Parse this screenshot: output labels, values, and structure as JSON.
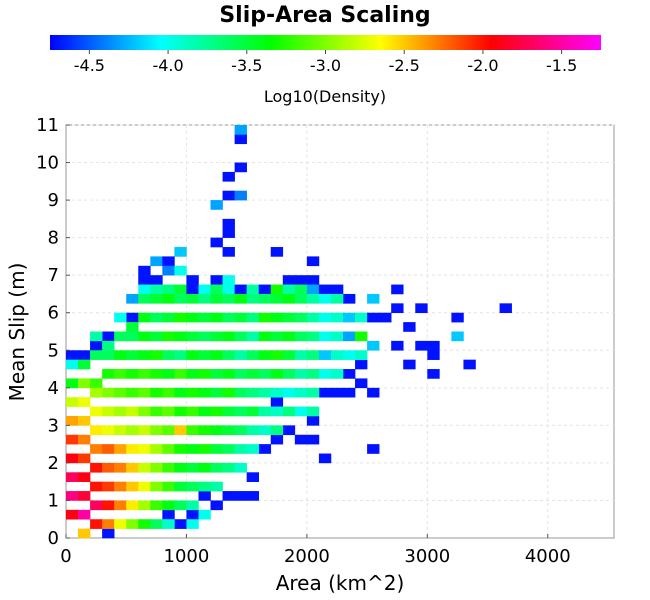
{
  "chart_data": {
    "type": "heatmap",
    "title": "Slip-Area Scaling",
    "xlabel": "Area (km^2)",
    "ylabel": "Mean Slip (m)",
    "colorbar_label": "Log10(Density)",
    "xlim": [
      0,
      4550
    ],
    "ylim": [
      0,
      11
    ],
    "x_ticks": [
      0,
      1000,
      2000,
      3000,
      4000
    ],
    "y_ticks": [
      0,
      1,
      2,
      3,
      4,
      5,
      6,
      7,
      8,
      9,
      10,
      11
    ],
    "colorbar_range": [
      -4.75,
      -1.25
    ],
    "colorbar_ticks": [
      -4.5,
      -4.0,
      -3.5,
      -3.0,
      -2.5,
      -2.0,
      -1.5
    ],
    "colormap": [
      "#0000ff",
      "#00ffff",
      "#00ff00",
      "#ffff00",
      "#ff0000",
      "#ff00ff"
    ],
    "grid": true,
    "bin_size": {
      "area": 100,
      "slip": 0.25
    },
    "cells_note": "cells: [area_bin_start_km2, slip_bin_start_m, log10_density]",
    "cells": [
      [
        1400,
        10.5,
        -4.7
      ],
      [
        1400,
        10.75,
        -4.3
      ],
      [
        1400,
        9.75,
        -4.7
      ],
      [
        1300,
        9.5,
        -4.7
      ],
      [
        1300,
        9.0,
        -4.7
      ],
      [
        1400,
        9.0,
        -4.4
      ],
      [
        1200,
        8.75,
        -4.3
      ],
      [
        1300,
        8.25,
        -4.7
      ],
      [
        1300,
        8.0,
        -4.7
      ],
      [
        1200,
        7.75,
        -4.7
      ],
      [
        900,
        7.5,
        -4.2
      ],
      [
        1300,
        7.5,
        -4.7
      ],
      [
        1700,
        7.5,
        -4.7
      ],
      [
        2000,
        7.25,
        -4.7
      ],
      [
        600,
        7.0,
        -4.7
      ],
      [
        700,
        7.25,
        -4.3
      ],
      [
        800,
        7.25,
        -4.7
      ],
      [
        600,
        6.75,
        -4.7
      ],
      [
        700,
        6.75,
        -4.7
      ],
      [
        800,
        7.0,
        -4.4
      ],
      [
        900,
        7.0,
        -4.0
      ],
      [
        1000,
        6.75,
        -4.7
      ],
      [
        1200,
        6.75,
        -4.7
      ],
      [
        1300,
        6.75,
        -4.0
      ],
      [
        1800,
        6.75,
        -4.7
      ],
      [
        1900,
        6.75,
        -4.7
      ],
      [
        2000,
        6.75,
        -4.7
      ],
      [
        500,
        6.25,
        -4.3
      ],
      [
        600,
        6.5,
        -4.0
      ],
      [
        700,
        6.5,
        -3.8
      ],
      [
        800,
        6.5,
        -3.7
      ],
      [
        900,
        6.5,
        -3.5
      ],
      [
        1000,
        6.5,
        -4.7
      ],
      [
        1100,
        6.5,
        -4.0
      ],
      [
        1200,
        6.5,
        -3.6
      ],
      [
        1300,
        6.5,
        -4.0
      ],
      [
        1400,
        6.5,
        -4.7
      ],
      [
        1500,
        6.5,
        -3.8
      ],
      [
        1600,
        6.5,
        -4.7
      ],
      [
        1700,
        6.5,
        -3.3
      ],
      [
        1800,
        6.5,
        -3.8
      ],
      [
        1900,
        6.5,
        -3.6
      ],
      [
        2000,
        6.5,
        -4.3
      ],
      [
        2100,
        6.5,
        -4.7
      ],
      [
        2200,
        6.5,
        -4.7
      ],
      [
        2700,
        6.5,
        -4.7
      ],
      [
        2300,
        6.25,
        -4.7
      ],
      [
        2500,
        6.25,
        -4.2
      ],
      [
        2900,
        6.0,
        -4.7
      ],
      [
        3200,
        5.75,
        -4.7
      ],
      [
        3600,
        6.0,
        -4.7
      ],
      [
        2600,
        5.75,
        -4.7
      ],
      [
        2700,
        6.0,
        -4.7
      ],
      [
        2800,
        5.5,
        -4.7
      ],
      [
        3200,
        5.25,
        -4.2
      ],
      [
        500,
        5.75,
        -4.7
      ],
      [
        300,
        5.25,
        -4.7
      ],
      [
        200,
        5.0,
        -4.7
      ],
      [
        0,
        4.75,
        -4.7
      ],
      [
        100,
        4.75,
        -4.7
      ],
      [
        2700,
        5.0,
        -4.7
      ],
      [
        2900,
        5.0,
        -4.7
      ],
      [
        3000,
        5.0,
        -4.7
      ],
      [
        3000,
        4.75,
        -4.7
      ],
      [
        3300,
        4.5,
        -4.7
      ],
      [
        2800,
        4.5,
        -4.7
      ],
      [
        3000,
        4.25,
        -4.7
      ],
      [
        2400,
        4.5,
        -4.7
      ],
      [
        2300,
        4.25,
        -4.7
      ],
      [
        2400,
        4.0,
        -4.7
      ],
      [
        2200,
        3.75,
        -4.7
      ],
      [
        2300,
        3.75,
        -4.7
      ],
      [
        2500,
        3.75,
        -4.7
      ],
      [
        2100,
        3.75,
        -4.7
      ],
      [
        1700,
        3.5,
        -4.7
      ],
      [
        2000,
        3.0,
        -4.7
      ],
      [
        1800,
        2.75,
        -4.7
      ],
      [
        1900,
        2.5,
        -4.7
      ],
      [
        2000,
        2.5,
        -4.7
      ],
      [
        1700,
        2.5,
        -4.7
      ],
      [
        1600,
        2.25,
        -4.7
      ],
      [
        2100,
        2.0,
        -4.7
      ],
      [
        2500,
        2.25,
        -4.7
      ],
      [
        1500,
        1.5,
        -4.7
      ],
      [
        1400,
        1.0,
        -4.7
      ],
      [
        1500,
        1.0,
        -4.7
      ],
      [
        1100,
        1.0,
        -4.7
      ],
      [
        1200,
        0.75,
        -4.7
      ],
      [
        1300,
        1.0,
        -4.7
      ],
      [
        900,
        0.25,
        -4.7
      ],
      [
        300,
        0.0,
        -4.7
      ],
      [
        1000,
        0.5,
        -4.7
      ],
      [
        800,
        0.5,
        -4.7
      ],
      [
        0,
        4.5,
        -4.0
      ],
      [
        100,
        4.5,
        -3.5
      ],
      [
        200,
        4.75,
        -3.6
      ],
      [
        300,
        4.75,
        -3.6
      ],
      [
        400,
        4.75,
        -3.4
      ],
      [
        500,
        4.75,
        -3.5
      ],
      [
        600,
        4.75,
        -3.4
      ],
      [
        700,
        4.75,
        -3.3
      ],
      [
        800,
        4.75,
        -3.6
      ],
      [
        900,
        4.75,
        -3.7
      ],
      [
        1000,
        4.75,
        -3.4
      ],
      [
        1100,
        4.75,
        -3.5
      ],
      [
        1200,
        4.75,
        -3.4
      ],
      [
        1300,
        4.75,
        -3.6
      ],
      [
        1400,
        4.75,
        -3.8
      ],
      [
        1500,
        4.75,
        -3.6
      ],
      [
        1600,
        4.75,
        -3.4
      ],
      [
        1700,
        4.75,
        -3.3
      ],
      [
        1800,
        4.75,
        -3.5
      ],
      [
        1900,
        4.75,
        -3.8
      ],
      [
        2000,
        4.75,
        -3.7
      ],
      [
        2100,
        4.75,
        -4.2
      ],
      [
        2200,
        4.75,
        -3.9
      ],
      [
        2300,
        4.75,
        -4.0
      ],
      [
        2400,
        4.75,
        -3.9
      ],
      [
        200,
        5.25,
        -3.8
      ],
      [
        300,
        5.0,
        -3.7
      ],
      [
        400,
        5.25,
        -3.6
      ],
      [
        500,
        5.25,
        -3.6
      ],
      [
        600,
        5.25,
        -3.4
      ],
      [
        700,
        5.25,
        -3.5
      ],
      [
        800,
        5.25,
        -3.3
      ],
      [
        900,
        5.25,
        -3.4
      ],
      [
        1000,
        5.25,
        -3.5
      ],
      [
        1100,
        5.25,
        -3.6
      ],
      [
        1200,
        5.25,
        -3.5
      ],
      [
        1300,
        5.25,
        -3.4
      ],
      [
        1400,
        5.25,
        -3.6
      ],
      [
        1500,
        5.25,
        -3.8
      ],
      [
        1600,
        5.25,
        -3.4
      ],
      [
        1700,
        5.25,
        -3.5
      ],
      [
        1800,
        5.25,
        -3.4
      ],
      [
        1900,
        5.25,
        -3.6
      ],
      [
        2000,
        5.25,
        -3.7
      ],
      [
        2100,
        5.25,
        -4.0
      ],
      [
        2200,
        5.25,
        -3.9
      ],
      [
        2300,
        5.25,
        -4.3
      ],
      [
        2400,
        5.25,
        -3.3
      ],
      [
        2500,
        5.0,
        -4.2
      ],
      [
        400,
        5.75,
        -4.0
      ],
      [
        500,
        5.5,
        -3.5
      ],
      [
        600,
        5.75,
        -3.4
      ],
      [
        700,
        5.75,
        -3.6
      ],
      [
        800,
        5.75,
        -3.5
      ],
      [
        900,
        5.75,
        -3.3
      ],
      [
        1000,
        5.75,
        -3.4
      ],
      [
        1100,
        5.75,
        -3.5
      ],
      [
        1200,
        5.75,
        -3.4
      ],
      [
        1300,
        5.75,
        -3.6
      ],
      [
        1400,
        5.75,
        -3.5
      ],
      [
        1500,
        5.75,
        -3.7
      ],
      [
        1600,
        5.75,
        -3.3
      ],
      [
        1700,
        5.75,
        -3.4
      ],
      [
        1800,
        5.75,
        -3.5
      ],
      [
        1900,
        5.75,
        -3.6
      ],
      [
        2000,
        5.75,
        -3.8
      ],
      [
        2100,
        5.75,
        -4.0
      ],
      [
        2200,
        5.75,
        -3.9
      ],
      [
        2300,
        5.75,
        -4.2
      ],
      [
        2400,
        5.75,
        -3.9
      ],
      [
        2500,
        5.75,
        -4.7
      ],
      [
        600,
        6.25,
        -3.6
      ],
      [
        700,
        6.25,
        -3.5
      ],
      [
        800,
        6.25,
        -3.4
      ],
      [
        900,
        6.25,
        -3.6
      ],
      [
        1000,
        6.25,
        -3.5
      ],
      [
        1100,
        6.25,
        -3.7
      ],
      [
        1200,
        6.25,
        -3.5
      ],
      [
        1300,
        6.25,
        -3.6
      ],
      [
        1400,
        6.25,
        -3.4
      ],
      [
        1500,
        6.25,
        -3.7
      ],
      [
        1600,
        6.25,
        -3.6
      ],
      [
        1700,
        6.25,
        -3.5
      ],
      [
        1800,
        6.25,
        -3.4
      ],
      [
        1900,
        6.25,
        -3.6
      ],
      [
        2000,
        6.25,
        -3.8
      ],
      [
        2100,
        6.25,
        -4.0
      ],
      [
        2200,
        6.25,
        -3.8
      ],
      [
        0,
        4.0,
        -3.4
      ],
      [
        100,
        4.0,
        -3.0
      ],
      [
        200,
        4.0,
        -3.2
      ],
      [
        300,
        4.25,
        -3.3
      ],
      [
        400,
        4.25,
        -3.2
      ],
      [
        500,
        4.25,
        -3.3
      ],
      [
        600,
        4.25,
        -3.2
      ],
      [
        700,
        4.25,
        -3.3
      ],
      [
        800,
        4.25,
        -3.4
      ],
      [
        900,
        4.25,
        -3.2
      ],
      [
        1000,
        4.25,
        -3.4
      ],
      [
        1100,
        4.25,
        -3.3
      ],
      [
        1200,
        4.25,
        -3.5
      ],
      [
        1300,
        4.25,
        -3.4
      ],
      [
        1400,
        4.25,
        -3.6
      ],
      [
        1500,
        4.25,
        -3.5
      ],
      [
        1600,
        4.25,
        -3.6
      ],
      [
        1700,
        4.25,
        -3.4
      ],
      [
        1800,
        4.25,
        -3.6
      ],
      [
        1900,
        4.25,
        -3.8
      ],
      [
        2000,
        4.25,
        -3.7
      ],
      [
        2100,
        4.25,
        -4.0
      ],
      [
        2200,
        4.25,
        -3.9
      ],
      [
        0,
        3.5,
        -2.8
      ],
      [
        100,
        3.5,
        -2.7
      ],
      [
        200,
        3.75,
        -2.9
      ],
      [
        300,
        3.75,
        -3.0
      ],
      [
        400,
        3.75,
        -3.1
      ],
      [
        500,
        3.75,
        -3.2
      ],
      [
        600,
        3.75,
        -3.1
      ],
      [
        700,
        3.75,
        -3.3
      ],
      [
        800,
        3.75,
        -3.2
      ],
      [
        900,
        3.75,
        -3.4
      ],
      [
        1000,
        3.75,
        -3.3
      ],
      [
        1100,
        3.75,
        -3.4
      ],
      [
        1200,
        3.75,
        -3.5
      ],
      [
        1300,
        3.75,
        -3.3
      ],
      [
        1400,
        3.75,
        -3.6
      ],
      [
        1500,
        3.75,
        -3.7
      ],
      [
        1600,
        3.75,
        -3.8
      ],
      [
        1700,
        3.75,
        -3.9
      ],
      [
        1800,
        3.75,
        -4.0
      ],
      [
        1900,
        3.75,
        -3.9
      ],
      [
        2000,
        3.75,
        -3.8
      ],
      [
        0,
        3.0,
        -2.4
      ],
      [
        100,
        3.0,
        -2.5
      ],
      [
        200,
        3.25,
        -2.7
      ],
      [
        300,
        3.25,
        -2.8
      ],
      [
        400,
        3.25,
        -2.9
      ],
      [
        500,
        3.25,
        -2.8
      ],
      [
        600,
        3.25,
        -3.0
      ],
      [
        700,
        3.25,
        -3.2
      ],
      [
        800,
        3.25,
        -3.1
      ],
      [
        900,
        3.25,
        -3.3
      ],
      [
        1000,
        3.25,
        -3.2
      ],
      [
        1100,
        3.25,
        -3.4
      ],
      [
        1200,
        3.25,
        -3.3
      ],
      [
        1300,
        3.25,
        -3.5
      ],
      [
        1400,
        3.25,
        -3.6
      ],
      [
        1500,
        3.25,
        -3.5
      ],
      [
        1600,
        3.25,
        -3.8
      ],
      [
        1700,
        3.25,
        -3.9
      ],
      [
        1800,
        3.25,
        -3.7
      ],
      [
        1900,
        3.25,
        -4.0
      ],
      [
        2000,
        3.25,
        -3.8
      ],
      [
        0,
        2.5,
        -2.1
      ],
      [
        100,
        2.5,
        -2.3
      ],
      [
        200,
        2.75,
        -2.6
      ],
      [
        300,
        2.75,
        -2.7
      ],
      [
        400,
        2.75,
        -2.8
      ],
      [
        500,
        2.75,
        -2.9
      ],
      [
        600,
        2.75,
        -2.8
      ],
      [
        700,
        2.75,
        -3.0
      ],
      [
        800,
        2.75,
        -3.1
      ],
      [
        900,
        2.75,
        -2.5
      ],
      [
        1000,
        2.75,
        -3.2
      ],
      [
        1100,
        2.75,
        -3.3
      ],
      [
        1200,
        2.75,
        -3.4
      ],
      [
        1300,
        2.75,
        -3.5
      ],
      [
        1400,
        2.75,
        -3.6
      ],
      [
        1500,
        2.75,
        -3.8
      ],
      [
        1600,
        2.75,
        -3.9
      ],
      [
        1700,
        2.75,
        -3.7
      ],
      [
        0,
        2.0,
        -1.9
      ],
      [
        100,
        2.0,
        -2.1
      ],
      [
        200,
        2.25,
        -2.3
      ],
      [
        300,
        2.25,
        -2.2
      ],
      [
        400,
        2.25,
        -2.4
      ],
      [
        500,
        2.25,
        -2.6
      ],
      [
        600,
        2.25,
        -2.7
      ],
      [
        700,
        2.25,
        -2.9
      ],
      [
        800,
        2.25,
        -3.1
      ],
      [
        900,
        2.25,
        -3.3
      ],
      [
        1000,
        2.25,
        -3.4
      ],
      [
        1100,
        2.25,
        -3.3
      ],
      [
        1200,
        2.25,
        -3.5
      ],
      [
        1300,
        2.25,
        -3.6
      ],
      [
        1400,
        2.25,
        -3.8
      ],
      [
        1500,
        2.25,
        -3.9
      ],
      [
        0,
        1.5,
        -1.7
      ],
      [
        100,
        1.5,
        -1.9
      ],
      [
        200,
        1.75,
        -2.0
      ],
      [
        300,
        1.75,
        -2.2
      ],
      [
        400,
        1.75,
        -2.3
      ],
      [
        500,
        1.75,
        -2.5
      ],
      [
        600,
        1.75,
        -2.8
      ],
      [
        700,
        1.75,
        -3.0
      ],
      [
        800,
        1.75,
        -3.2
      ],
      [
        900,
        1.75,
        -3.4
      ],
      [
        1000,
        1.75,
        -3.5
      ],
      [
        1100,
        1.75,
        -3.4
      ],
      [
        1200,
        1.75,
        -3.6
      ],
      [
        1300,
        1.75,
        -3.7
      ],
      [
        1400,
        1.75,
        -3.9
      ],
      [
        0,
        1.0,
        -1.6
      ],
      [
        100,
        1.0,
        -1.8
      ],
      [
        200,
        1.25,
        -2.0
      ],
      [
        300,
        1.25,
        -2.1
      ],
      [
        400,
        1.25,
        -2.3
      ],
      [
        500,
        1.25,
        -2.5
      ],
      [
        600,
        1.25,
        -2.7
      ],
      [
        700,
        1.25,
        -3.0
      ],
      [
        800,
        1.25,
        -3.2
      ],
      [
        900,
        1.25,
        -3.5
      ],
      [
        1000,
        1.25,
        -3.6
      ],
      [
        1100,
        1.25,
        -3.7
      ],
      [
        1200,
        1.25,
        -3.8
      ],
      [
        0,
        0.5,
        -1.9
      ],
      [
        100,
        0.5,
        -1.5
      ],
      [
        200,
        0.75,
        -1.7
      ],
      [
        300,
        0.75,
        -2.0
      ],
      [
        400,
        0.75,
        -2.3
      ],
      [
        500,
        0.75,
        -2.6
      ],
      [
        600,
        0.75,
        -2.9
      ],
      [
        700,
        0.75,
        -3.2
      ],
      [
        800,
        0.75,
        -3.4
      ],
      [
        900,
        0.75,
        -3.6
      ],
      [
        1000,
        0.75,
        -3.8
      ],
      [
        1100,
        0.5,
        -4.0
      ],
      [
        100,
        0.0,
        -2.5
      ],
      [
        200,
        0.25,
        -2.0
      ],
      [
        300,
        0.25,
        -2.3
      ],
      [
        400,
        0.25,
        -2.7
      ],
      [
        500,
        0.25,
        -3.0
      ],
      [
        600,
        0.25,
        -3.3
      ],
      [
        700,
        0.25,
        -3.6
      ],
      [
        800,
        0.25,
        -3.9
      ],
      [
        1000,
        0.25,
        -4.0
      ]
    ]
  }
}
